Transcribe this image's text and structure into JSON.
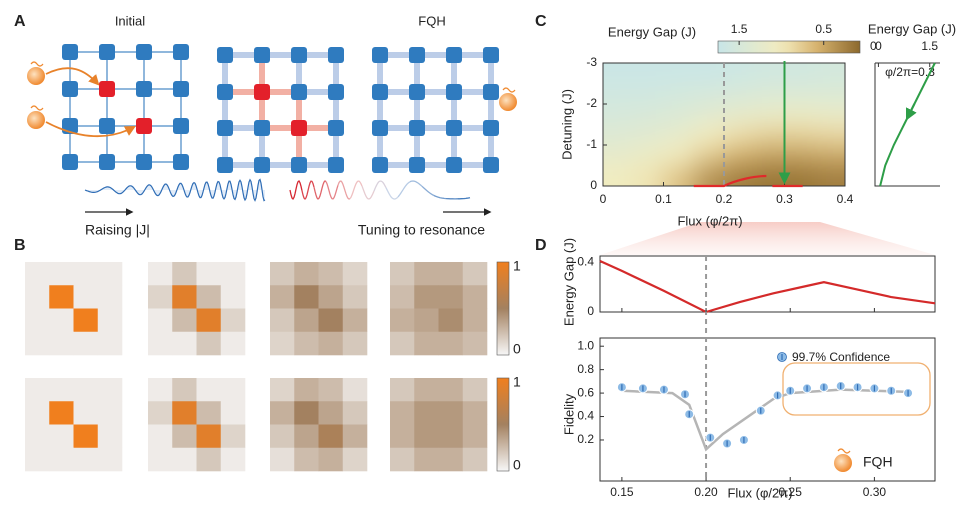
{
  "panel_labels": [
    "A",
    "B",
    "C",
    "D"
  ],
  "panel_a": {
    "titles": [
      "Initial",
      "FQH"
    ],
    "captions": [
      "Raising |J|",
      "Tuning to resonance"
    ]
  },
  "chart_data": [
    {
      "type": "heatmap-grid",
      "clim": [
        0,
        1
      ],
      "cticks": [
        1,
        0
      ],
      "matrices": [
        [
          [
            0.05,
            0.05,
            0.05,
            0.05
          ],
          [
            0.05,
            1,
            0.05,
            0.05
          ],
          [
            0.05,
            0.05,
            1,
            0.05
          ],
          [
            0.05,
            0.05,
            0.05,
            0.05
          ]
        ],
        [
          [
            0.05,
            0.2,
            0.05,
            0.05
          ],
          [
            0.15,
            0.9,
            0.25,
            0.05
          ],
          [
            0.05,
            0.25,
            0.9,
            0.15
          ],
          [
            0.05,
            0.05,
            0.2,
            0.05
          ]
        ],
        [
          [
            0.2,
            0.3,
            0.25,
            0.15
          ],
          [
            0.3,
            0.5,
            0.35,
            0.2
          ],
          [
            0.2,
            0.35,
            0.5,
            0.3
          ],
          [
            0.15,
            0.25,
            0.3,
            0.2
          ]
        ],
        [
          [
            0.2,
            0.3,
            0.3,
            0.2
          ],
          [
            0.25,
            0.4,
            0.4,
            0.3
          ],
          [
            0.3,
            0.35,
            0.45,
            0.3
          ],
          [
            0.2,
            0.3,
            0.3,
            0.25
          ]
        ],
        [
          [
            0.05,
            0.05,
            0.05,
            0.05
          ],
          [
            0.05,
            1,
            0.05,
            0.05
          ],
          [
            0.05,
            0.05,
            1,
            0.05
          ],
          [
            0.05,
            0.05,
            0.05,
            0.05
          ]
        ],
        [
          [
            0.05,
            0.2,
            0.05,
            0.05
          ],
          [
            0.15,
            0.9,
            0.25,
            0.05
          ],
          [
            0.05,
            0.25,
            0.9,
            0.15
          ],
          [
            0.05,
            0.05,
            0.2,
            0.05
          ]
        ],
        [
          [
            0.15,
            0.3,
            0.25,
            0.1
          ],
          [
            0.3,
            0.5,
            0.35,
            0.2
          ],
          [
            0.2,
            0.35,
            0.55,
            0.3
          ],
          [
            0.1,
            0.25,
            0.3,
            0.15
          ]
        ],
        [
          [
            0.2,
            0.3,
            0.3,
            0.2
          ],
          [
            0.3,
            0.4,
            0.4,
            0.3
          ],
          [
            0.3,
            0.4,
            0.4,
            0.3
          ],
          [
            0.2,
            0.3,
            0.3,
            0.2
          ]
        ]
      ]
    },
    {
      "type": "heatmap",
      "x_label": "Flux (φ/2π)",
      "y_label": "Detuning (J)",
      "colorbar_label": "Energy Gap (J)",
      "xlim": [
        0,
        0.4
      ],
      "xticks": [
        0,
        0.1,
        0.2,
        0.3,
        0.4
      ],
      "ylim": [
        0,
        -3
      ],
      "yticks": [
        -3,
        -2,
        -1,
        0
      ],
      "clim": [
        1.75,
        0
      ],
      "cticks": [
        1.5,
        0.5,
        0
      ],
      "vline": 0.2,
      "arrow_x": 0.3,
      "x": [
        0.025,
        0.075,
        0.125,
        0.175,
        0.225,
        0.275,
        0.325,
        0.375
      ],
      "y": [
        -2.75,
        -2.25,
        -1.75,
        -1.25,
        -0.75,
        -0.25
      ],
      "z": [
        [
          1.7,
          1.7,
          1.7,
          1.7,
          1.65,
          1.6,
          1.6,
          1.55
        ],
        [
          1.6,
          1.6,
          1.55,
          1.5,
          1.45,
          1.4,
          1.4,
          1.4
        ],
        [
          1.5,
          1.45,
          1.4,
          1.3,
          1.2,
          1.15,
          1.1,
          1.15
        ],
        [
          1.35,
          1.3,
          1.2,
          1.0,
          0.85,
          0.75,
          0.75,
          0.8
        ],
        [
          1.2,
          1.1,
          0.95,
          0.7,
          0.5,
          0.4,
          0.4,
          0.45
        ],
        [
          1.0,
          0.9,
          0.65,
          0.3,
          0.15,
          0.1,
          0.1,
          0.15
        ]
      ]
    },
    {
      "type": "line",
      "title": "Energy Gap (J)",
      "annotation": "φ/2π=0.3",
      "xlim": [
        -0.1,
        1.8
      ],
      "xticks": [
        0,
        1.5
      ],
      "ylim": [
        0,
        -3
      ],
      "color": "#2e9e48",
      "x": [
        0.05,
        0.2,
        0.45,
        0.75,
        1.05,
        1.35,
        1.65
      ],
      "values": [
        0,
        -0.5,
        -1,
        -1.5,
        -2,
        -2.5,
        -3
      ]
    },
    {
      "type": "line",
      "y_label": "Energy Gap (J)",
      "xlim": [
        0.137,
        0.336
      ],
      "ylim": [
        0,
        0.45
      ],
      "yticks": [
        0,
        0.4
      ],
      "color": "#d42a2a",
      "x": [
        0.137,
        0.15,
        0.175,
        0.2,
        0.22,
        0.24,
        0.26,
        0.27,
        0.29,
        0.31,
        0.336
      ],
      "values": [
        0.41,
        0.33,
        0.17,
        0,
        0.08,
        0.15,
        0.21,
        0.24,
        0.18,
        0.12,
        0.07
      ]
    },
    {
      "type": "scatter",
      "y_label": "Fidelity",
      "x_label": "Flux (φ/2π)",
      "annotation": "FQH",
      "xlim": [
        0.137,
        0.336
      ],
      "ylim": [
        -0.15,
        1.07
      ],
      "vline": 0.2,
      "xticks": [
        {
          "value": 0.15,
          "label": "0.15"
        },
        {
          "value": 0.2,
          "label": "0.20"
        },
        {
          "value": 0.25,
          "label": "0.25"
        },
        {
          "value": 0.3,
          "label": "0.30"
        }
      ],
      "yticks": [
        0.2,
        0.4,
        0.6,
        0.8,
        {
          "value": 1,
          "label": "1.0"
        }
      ],
      "series": [
        {
          "name": "99.7% Confidence",
          "color": "#8dbbe6",
          "x": [
            0.15,
            0.1625,
            0.175,
            0.1875,
            0.19,
            0.2025,
            0.2125,
            0.2225,
            0.2325,
            0.2425,
            0.25,
            0.26,
            0.27,
            0.28,
            0.29,
            0.3,
            0.31,
            0.32
          ],
          "values": [
            0.65,
            0.64,
            0.63,
            0.59,
            0.42,
            0.22,
            0.17,
            0.2,
            0.45,
            0.58,
            0.62,
            0.64,
            0.65,
            0.66,
            0.65,
            0.64,
            0.62,
            0.6
          ]
        }
      ],
      "fit": {
        "color": "#b5b5b5",
        "x": [
          0.15,
          0.18,
          0.19,
          0.2,
          0.21,
          0.23,
          0.24,
          0.25,
          0.28,
          0.32
        ],
        "values": [
          0.62,
          0.6,
          0.5,
          0.12,
          0.25,
          0.45,
          0.55,
          0.6,
          0.63,
          0.61
        ]
      }
    }
  ]
}
